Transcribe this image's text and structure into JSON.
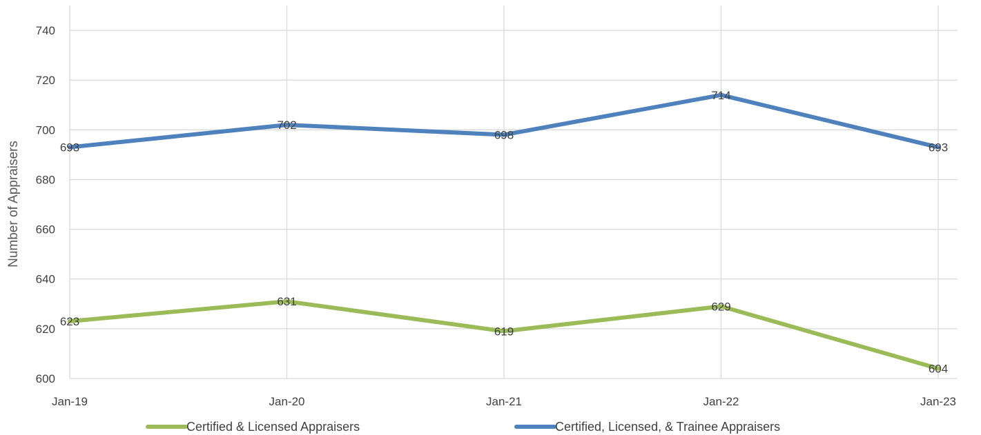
{
  "chart_data": {
    "type": "line",
    "title": "",
    "xlabel": "",
    "ylabel": "Number of Appraisers",
    "categories": [
      "Jan-19",
      "Jan-20",
      "Jan-21",
      "Jan-22",
      "Jan-23"
    ],
    "ylim": [
      600,
      750
    ],
    "yticks": [
      600,
      620,
      640,
      660,
      680,
      700,
      720,
      740
    ],
    "grid": true,
    "legend_position": "bottom",
    "series": [
      {
        "name": "Certified & Licensed Appraisers",
        "color": "#9bbb59",
        "values": [
          623,
          631,
          619,
          629,
          604
        ]
      },
      {
        "name": "Certified, Licensed, & Trainee Appraisers",
        "color": "#4f81bd",
        "values": [
          693,
          702,
          698,
          714,
          693
        ]
      }
    ]
  }
}
